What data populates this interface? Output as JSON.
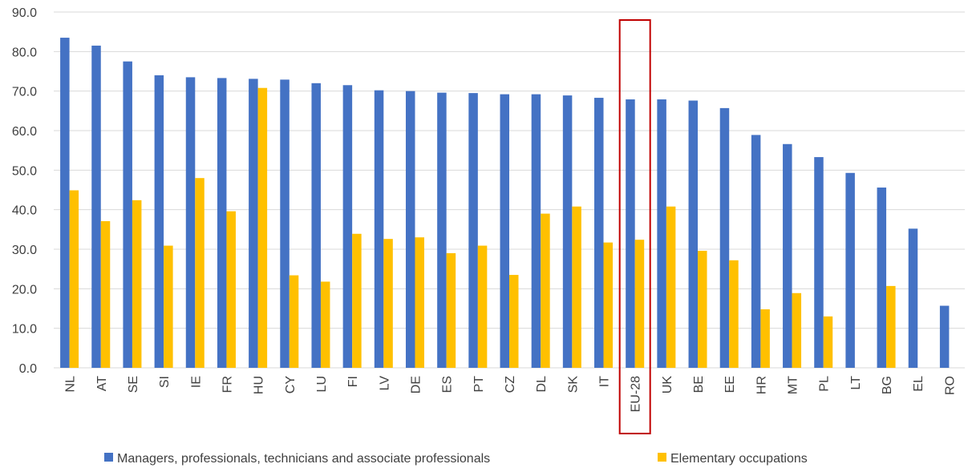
{
  "chart_data": {
    "type": "bar",
    "categories": [
      "NL",
      "AT",
      "SE",
      "SI",
      "IE",
      "FR",
      "HU",
      "CY",
      "LU",
      "FI",
      "LV",
      "DE",
      "ES",
      "PT",
      "CZ",
      "DL",
      "SK",
      "IT",
      "EU-28",
      "UK",
      "BE",
      "EE",
      "HR",
      "MT",
      "PL",
      "LT",
      "BG",
      "EL",
      "RO"
    ],
    "series": [
      {
        "name": "Managers, professionals, technicians and associate professionals",
        "color": "#4472c4",
        "values": [
          83.5,
          81.5,
          77.5,
          74.0,
          73.5,
          73.3,
          73.1,
          72.9,
          72.0,
          71.5,
          70.2,
          70.0,
          69.6,
          69.5,
          69.2,
          69.2,
          68.9,
          68.3,
          67.9,
          67.9,
          67.6,
          65.7,
          58.9,
          56.6,
          53.3,
          49.3,
          45.6,
          35.2,
          15.7
        ]
      },
      {
        "name": "Elementary occupations",
        "color": "#ffc000",
        "values": [
          44.9,
          37.1,
          42.4,
          30.9,
          48.0,
          39.6,
          70.8,
          23.4,
          21.8,
          33.9,
          32.6,
          33.0,
          29.0,
          30.9,
          23.5,
          39.0,
          40.8,
          31.7,
          32.4,
          40.8,
          29.6,
          27.2,
          14.8,
          18.9,
          13.0,
          null,
          20.7,
          null,
          null
        ]
      }
    ],
    "ylim": [
      0,
      90
    ],
    "yticks": [
      {
        "value": 0,
        "label": "0.0"
      },
      {
        "value": 10,
        "label": "10.0"
      },
      {
        "value": 20,
        "label": "20.0"
      },
      {
        "value": 30,
        "label": "30.0"
      },
      {
        "value": 40,
        "label": "40.0"
      },
      {
        "value": 50,
        "label": "50.0"
      },
      {
        "value": 60,
        "label": "60.0"
      },
      {
        "value": 70,
        "label": "70.0"
      },
      {
        "value": 80,
        "label": "80.0"
      },
      {
        "value": 90,
        "label": "90.0"
      }
    ],
    "grid": true,
    "highlight": "EU-28",
    "highlight_color": "#c00000",
    "legend": "bottom"
  }
}
